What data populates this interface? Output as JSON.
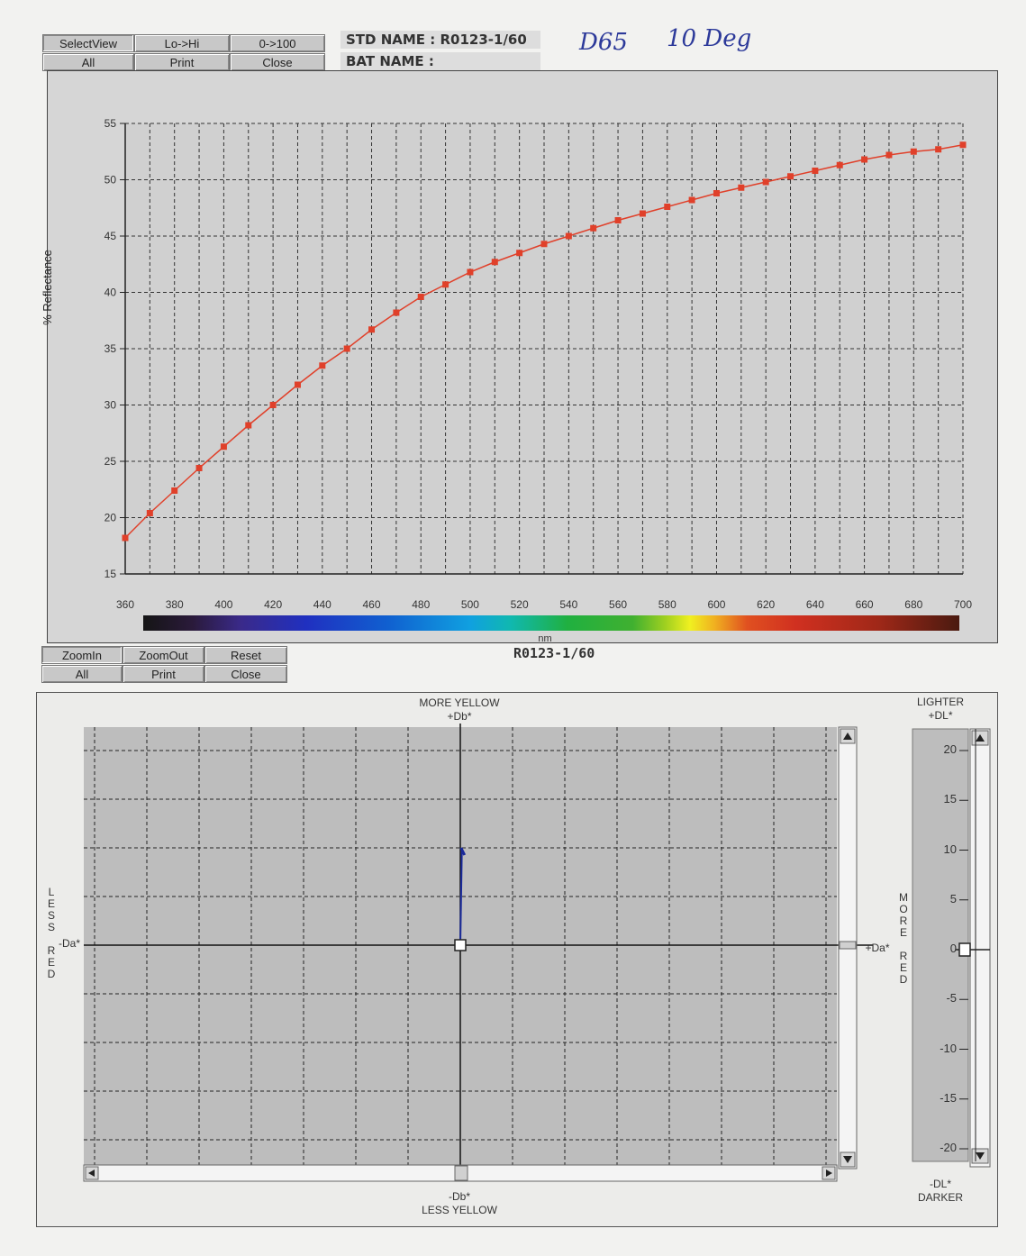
{
  "toolbar_top": {
    "select_view": "SelectView",
    "lo_hi": "Lo->Hi",
    "zero_100": "0->100",
    "all": "All",
    "print": "Print",
    "close": "Close"
  },
  "header": {
    "std_name_label": "STD NAME : R0123-1/60",
    "bat_name_label": "BAT NAME :",
    "handwriting_illuminant": "D65",
    "handwriting_observer": "10 Deg"
  },
  "spectral_chart": {
    "ylabel": "% Reflectance",
    "xlabel": "nm",
    "sample_name": "R0123-1/60"
  },
  "chart_data": {
    "type": "line",
    "xlabel": "nm",
    "ylabel": "% Reflectance",
    "xlim": [
      360,
      700
    ],
    "ylim": [
      15,
      55
    ],
    "x_ticks": [
      360,
      380,
      400,
      420,
      440,
      460,
      480,
      500,
      520,
      540,
      560,
      580,
      600,
      620,
      640,
      660,
      680,
      700
    ],
    "y_ticks": [
      15,
      20,
      25,
      30,
      35,
      40,
      45,
      50,
      55
    ],
    "grid": true,
    "color": "#e0402a",
    "series": [
      {
        "x": [
          360,
          370,
          380,
          390,
          400,
          410,
          420,
          430,
          440,
          450,
          460,
          470,
          480,
          490,
          500,
          510,
          520,
          530,
          540,
          550,
          560,
          570,
          580,
          590,
          600,
          610,
          620,
          630,
          640,
          650,
          660,
          670,
          680,
          690,
          700
        ],
        "values": [
          18.2,
          20.4,
          22.4,
          24.4,
          26.3,
          28.2,
          30.0,
          31.8,
          33.5,
          35.0,
          36.7,
          38.2,
          39.6,
          40.7,
          41.8,
          42.7,
          43.5,
          44.3,
          45.0,
          45.7,
          46.4,
          47.0,
          47.6,
          48.2,
          48.8,
          49.3,
          49.8,
          50.3,
          50.8,
          51.3,
          51.8,
          52.2,
          52.5,
          52.7,
          53.1
        ]
      }
    ]
  },
  "toolbar_bottom": {
    "zoom_in": "ZoomIn",
    "zoom_out": "ZoomOut",
    "reset": "Reset",
    "all": "All",
    "print": "Print",
    "close": "Close"
  },
  "diff_plot": {
    "more_yellow": "MORE YELLOW",
    "plus_db": "+Db*",
    "minus_db": "-Db*",
    "less_yellow": "LESS YELLOW",
    "minus_da": "-Da*",
    "plus_da": "+Da*",
    "less_red": "LESS RED",
    "more_red": "MORE RED",
    "lighter": "LIGHTER",
    "plus_dl": "+DL*",
    "minus_dl": "-DL*",
    "darker": "DARKER",
    "dl_ticks": [
      "20",
      "15",
      "10",
      "5",
      "0",
      "-5",
      "-10",
      "-15",
      "-20"
    ],
    "dl_value": 0,
    "sample_point": {
      "da": 0,
      "db": 0
    },
    "vector_point": {
      "da": 0.1,
      "db": 2
    }
  }
}
